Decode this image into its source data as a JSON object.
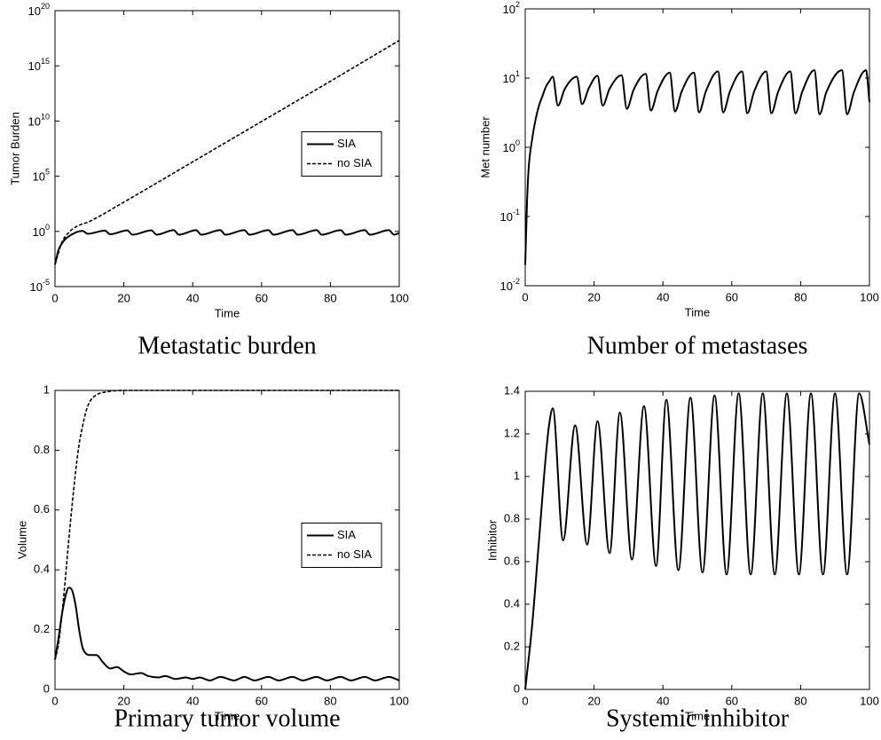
{
  "chart_data": [
    {
      "type": "line",
      "caption": "Metastatic burden",
      "xlabel": "Time",
      "ylabel": "Tumor Burden",
      "yscale": "log",
      "xlim": [
        0,
        100
      ],
      "xticks": [
        0,
        20,
        40,
        60,
        80,
        100
      ],
      "ylim": [
        1e-05,
        1e+20
      ],
      "yticks": [
        {
          "value": 1e-05,
          "label": "10^-5"
        },
        {
          "value": 1,
          "label": "10^0"
        },
        {
          "value": 100000.0,
          "label": "10^5"
        },
        {
          "value": 10000000000.0,
          "label": "10^10"
        },
        {
          "value": 1000000000000000.0,
          "label": "10^15"
        },
        {
          "value": 1e+20,
          "label": "10^20"
        }
      ],
      "legend": "center right",
      "series": [
        {
          "name": "SIA",
          "color": "#000000",
          "dash": "solid",
          "x": [
            0,
            1,
            2,
            3,
            4,
            5,
            6,
            8,
            9.5,
            14.5,
            16,
            21,
            22.5,
            28,
            29.5,
            34.5,
            36,
            41,
            42.5,
            48,
            49.5,
            55,
            56.5,
            62,
            63.5,
            69,
            70.5,
            76,
            77.5,
            83,
            84.5,
            90,
            91.5,
            97,
            98.5,
            100
          ],
          "values": [
            0.001,
            0.02,
            0.08,
            0.2,
            0.35,
            0.55,
            0.8,
            1.1,
            0.6,
            1.2,
            0.55,
            1.25,
            0.5,
            1.25,
            0.5,
            1.3,
            0.5,
            1.3,
            0.5,
            1.3,
            0.5,
            1.3,
            0.5,
            1.3,
            0.5,
            1.3,
            0.5,
            1.3,
            0.5,
            1.3,
            0.5,
            1.3,
            0.5,
            1.3,
            0.5,
            0.7
          ]
        },
        {
          "name": "no SIA",
          "color": "#000000",
          "dash": "dashed",
          "x": [
            0,
            2,
            4,
            6,
            10,
            20,
            40,
            60,
            80,
            100
          ],
          "values": [
            0.001,
            0.1,
            0.8,
            2.5,
            8,
            450,
            2000000,
            9000000000,
            40000000000000,
            200000000000000000
          ]
        }
      ]
    },
    {
      "type": "line",
      "caption": "Number of metastases",
      "xlabel": "Time",
      "ylabel": "Met number",
      "yscale": "log",
      "xlim": [
        0,
        100
      ],
      "xticks": [
        0,
        20,
        40,
        60,
        80,
        100
      ],
      "ylim": [
        0.01,
        100
      ],
      "yticks": [
        {
          "value": 0.01,
          "label": "10^-2"
        },
        {
          "value": 0.1,
          "label": "10^-1"
        },
        {
          "value": 1,
          "label": "10^0"
        },
        {
          "value": 10,
          "label": "10^1"
        },
        {
          "value": 100,
          "label": "10^2"
        }
      ],
      "series": [
        {
          "color": "#000000",
          "dash": "solid",
          "x": [
            0,
            0.5,
            1,
            2,
            3,
            4,
            5,
            6,
            7,
            8,
            9.5,
            11.5,
            15,
            16.5,
            18.5,
            21,
            22.5,
            24.5,
            28,
            29.5,
            31.5,
            35,
            36.5,
            38.5,
            42,
            43.5,
            45.5,
            49,
            50.5,
            52.5,
            56,
            57.5,
            59.5,
            63,
            64.5,
            66.5,
            70,
            71.5,
            73.5,
            77,
            78.5,
            80.5,
            84,
            85.5,
            87.5,
            92,
            93.5,
            95.5,
            99,
            100
          ],
          "values": [
            0.02,
            0.15,
            0.5,
            1.3,
            2.5,
            4,
            5.5,
            7.5,
            9,
            10.5,
            4,
            7,
            10.5,
            4.2,
            7.2,
            10.8,
            4,
            7,
            11,
            3.6,
            6.8,
            11.5,
            3.4,
            6.6,
            12,
            3.3,
            6.5,
            12,
            3.2,
            6.5,
            12.5,
            3.2,
            6.5,
            12.5,
            3.1,
            6.4,
            12.5,
            3.1,
            6.4,
            12.5,
            3.1,
            6.4,
            13,
            3.0,
            6.3,
            13,
            3.0,
            6.3,
            13,
            4.5
          ]
        }
      ]
    },
    {
      "type": "line",
      "caption": "Primary tumor volume",
      "xlabel": "Time",
      "ylabel": "Volume",
      "xlim": [
        0,
        100
      ],
      "xticks": [
        0,
        20,
        40,
        60,
        80,
        100
      ],
      "ylim": [
        0,
        1
      ],
      "yticks": [
        0,
        0.2,
        0.4,
        0.6,
        0.8,
        1
      ],
      "legend": "center right",
      "series": [
        {
          "name": "SIA",
          "color": "#000000",
          "dash": "solid",
          "x": [
            0,
            1,
            2,
            3,
            4,
            5,
            6,
            7,
            8,
            9,
            10,
            12,
            14,
            16,
            18,
            20,
            22,
            25,
            27,
            30,
            32,
            35,
            38,
            40,
            42,
            45,
            48,
            52,
            55,
            58,
            62,
            65,
            69,
            72,
            76,
            79,
            83,
            86,
            90,
            93,
            97,
            100
          ],
          "values": [
            0.1,
            0.17,
            0.25,
            0.31,
            0.34,
            0.33,
            0.28,
            0.2,
            0.14,
            0.12,
            0.115,
            0.115,
            0.09,
            0.07,
            0.075,
            0.06,
            0.05,
            0.055,
            0.045,
            0.04,
            0.045,
            0.035,
            0.04,
            0.035,
            0.04,
            0.03,
            0.042,
            0.03,
            0.042,
            0.03,
            0.042,
            0.03,
            0.042,
            0.03,
            0.042,
            0.03,
            0.042,
            0.03,
            0.042,
            0.03,
            0.042,
            0.03
          ]
        },
        {
          "name": "no SIA",
          "color": "#000000",
          "dash": "dashed",
          "x": [
            0,
            1,
            2,
            3,
            4,
            5,
            6,
            7,
            8,
            9,
            10,
            12,
            15,
            20,
            100
          ],
          "values": [
            0.1,
            0.15,
            0.25,
            0.37,
            0.5,
            0.62,
            0.73,
            0.82,
            0.88,
            0.93,
            0.96,
            0.985,
            0.995,
            1,
            1
          ]
        }
      ]
    },
    {
      "type": "line",
      "caption": "Systemic inhibitor",
      "xlabel": "Time",
      "ylabel": "Inhibitor",
      "xlim": [
        0,
        100
      ],
      "xticks": [
        0,
        20,
        40,
        60,
        80,
        100
      ],
      "ylim": [
        0,
        1.4
      ],
      "yticks": [
        0,
        0.2,
        0.4,
        0.6,
        0.8,
        1,
        1.2,
        1.4
      ],
      "series": [
        {
          "color": "#000000",
          "dash": "solid",
          "x": [
            0,
            2,
            4,
            6,
            7,
            8,
            11,
            14.5,
            18,
            21,
            24.5,
            27.5,
            31,
            34.5,
            38,
            41,
            44.5,
            48,
            51.5,
            55,
            58.5,
            62,
            65.5,
            69,
            72.5,
            76,
            79.5,
            83,
            86.5,
            90,
            93.5,
            97,
            100
          ],
          "values": [
            0,
            0.3,
            0.7,
            1.1,
            1.25,
            1.32,
            0.7,
            1.24,
            0.68,
            1.26,
            0.64,
            1.3,
            0.61,
            1.33,
            0.58,
            1.36,
            0.56,
            1.37,
            0.55,
            1.38,
            0.54,
            1.39,
            0.54,
            1.39,
            0.54,
            1.39,
            0.54,
            1.39,
            0.54,
            1.39,
            0.54,
            1.39,
            1.15
          ]
        }
      ]
    }
  ]
}
